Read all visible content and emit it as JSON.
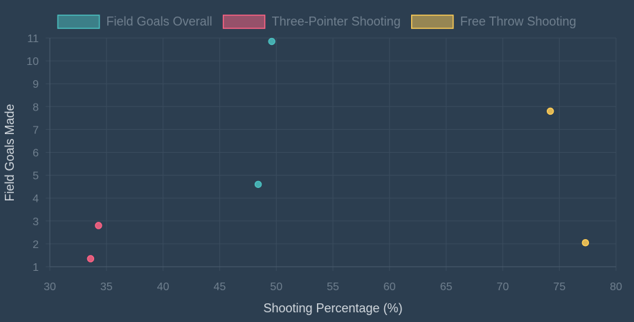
{
  "chart_data": {
    "type": "scatter",
    "xlabel": "Shooting Percentage (%)",
    "ylabel": "Field Goals Made",
    "xlim": [
      30,
      80
    ],
    "ylim": [
      1,
      11
    ],
    "xticks": [
      30,
      35,
      40,
      45,
      50,
      55,
      60,
      65,
      70,
      75,
      80
    ],
    "yticks": [
      1,
      2,
      3,
      4,
      5,
      6,
      7,
      8,
      9,
      10,
      11
    ],
    "grid": true,
    "legend_position": "top",
    "series": [
      {
        "name": "Field Goals Overall",
        "color": "#4bc0c0",
        "points": [
          {
            "x": 49.6,
            "y": 10.85
          },
          {
            "x": 48.4,
            "y": 4.6
          }
        ]
      },
      {
        "name": "Three-Pointer Shooting",
        "color": "#ff6384",
        "points": [
          {
            "x": 34.3,
            "y": 2.8
          },
          {
            "x": 33.6,
            "y": 1.35
          }
        ]
      },
      {
        "name": "Free Throw Shooting",
        "color": "#ffcd56",
        "points": [
          {
            "x": 74.2,
            "y": 7.8
          },
          {
            "x": 77.3,
            "y": 2.05
          }
        ]
      }
    ]
  }
}
